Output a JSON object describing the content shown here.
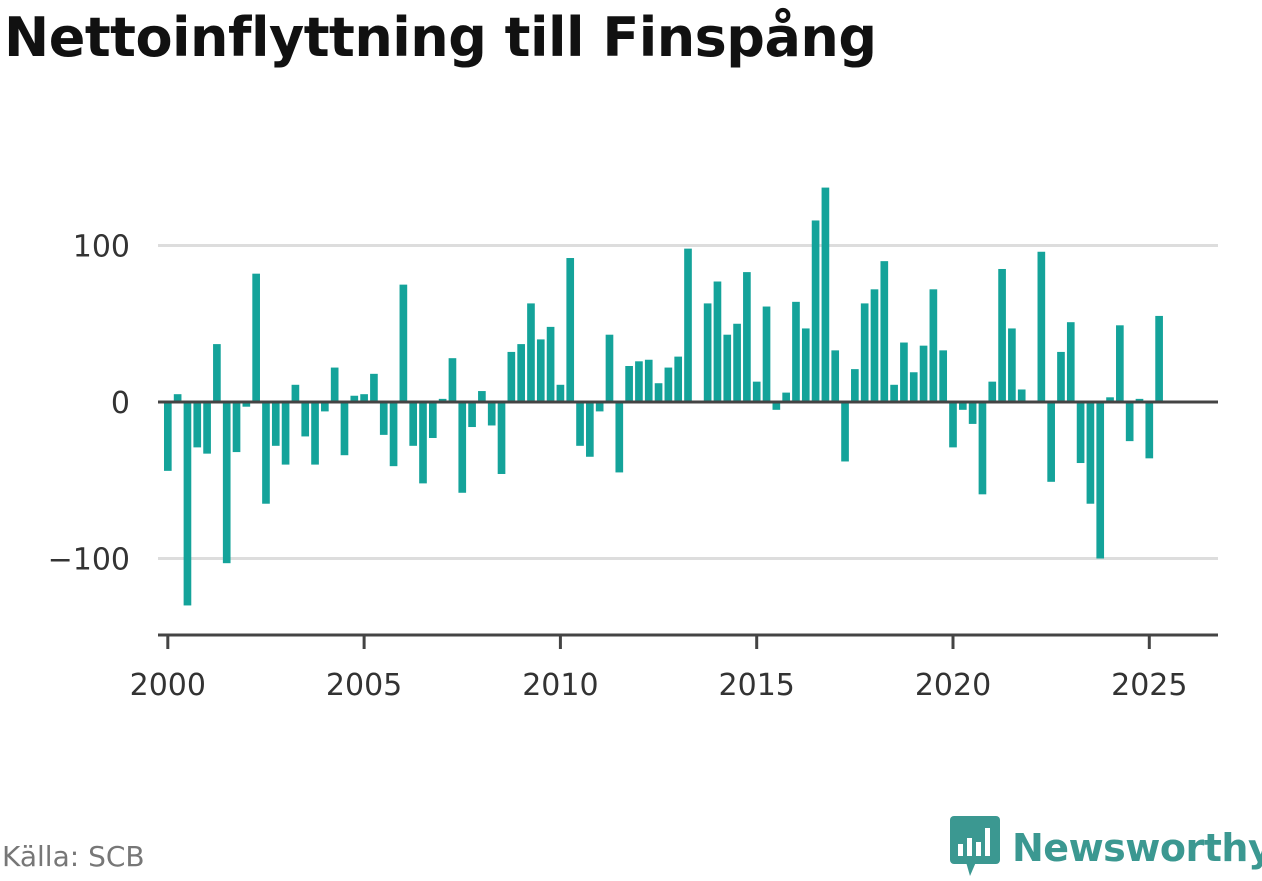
{
  "title": "Nettoinflyttning till Finspång",
  "source": "Källa: SCB",
  "brand": {
    "name": "Newsworthy",
    "icon": "newsworthy-logo-icon"
  },
  "colors": {
    "bar": "#14a39a",
    "zero_line": "#444444",
    "grid": "#dddddd",
    "axis": "#444444",
    "brand": "#3b9891"
  },
  "chart_data": {
    "type": "bar",
    "frequency": "quarterly",
    "title": "Nettoinflyttning till Finspång",
    "xlabel": "",
    "ylabel": "",
    "grid": true,
    "xlim": [
      1999.75,
      2026.75
    ],
    "ylim": [
      -150,
      150
    ],
    "x_ticks": [
      2000,
      2005,
      2010,
      2015,
      2020,
      2025
    ],
    "x_tick_labels": [
      "2000",
      "2005",
      "2010",
      "2015",
      "2020",
      "2025"
    ],
    "y_ticks": [
      -100,
      0,
      100
    ],
    "y_tick_labels": [
      "−100",
      "0",
      "100"
    ],
    "x": [
      "2000-Q1",
      "2000-Q2",
      "2000-Q3",
      "2000-Q4",
      "2001-Q1",
      "2001-Q2",
      "2001-Q3",
      "2001-Q4",
      "2002-Q1",
      "2002-Q2",
      "2002-Q3",
      "2002-Q4",
      "2003-Q1",
      "2003-Q2",
      "2003-Q3",
      "2003-Q4",
      "2004-Q1",
      "2004-Q2",
      "2004-Q3",
      "2004-Q4",
      "2005-Q1",
      "2005-Q2",
      "2005-Q3",
      "2005-Q4",
      "2006-Q1",
      "2006-Q2",
      "2006-Q3",
      "2006-Q4",
      "2007-Q1",
      "2007-Q2",
      "2007-Q3",
      "2007-Q4",
      "2008-Q1",
      "2008-Q2",
      "2008-Q3",
      "2008-Q4",
      "2009-Q1",
      "2009-Q2",
      "2009-Q3",
      "2009-Q4",
      "2010-Q1",
      "2010-Q2",
      "2010-Q3",
      "2010-Q4",
      "2011-Q1",
      "2011-Q2",
      "2011-Q3",
      "2011-Q4",
      "2012-Q1",
      "2012-Q2",
      "2012-Q3",
      "2012-Q4",
      "2013-Q1",
      "2013-Q2",
      "2013-Q3",
      "2013-Q4",
      "2014-Q1",
      "2014-Q2",
      "2014-Q3",
      "2014-Q4",
      "2015-Q1",
      "2015-Q2",
      "2015-Q3",
      "2015-Q4",
      "2016-Q1",
      "2016-Q2",
      "2016-Q3",
      "2016-Q4",
      "2017-Q1",
      "2017-Q2",
      "2017-Q3",
      "2017-Q4",
      "2018-Q1",
      "2018-Q2",
      "2018-Q3",
      "2018-Q4",
      "2019-Q1",
      "2019-Q2",
      "2019-Q3",
      "2019-Q4",
      "2020-Q1",
      "2020-Q2",
      "2020-Q3",
      "2020-Q4",
      "2021-Q1",
      "2021-Q2",
      "2021-Q3",
      "2021-Q4",
      "2022-Q1",
      "2022-Q2",
      "2022-Q3",
      "2022-Q4",
      "2023-Q1",
      "2023-Q2",
      "2023-Q3",
      "2023-Q4",
      "2024-Q1",
      "2024-Q2",
      "2024-Q3",
      "2024-Q4",
      "2025-Q1",
      "2025-Q2"
    ],
    "values": [
      -44,
      5,
      -130,
      -29,
      -33,
      37,
      -103,
      -32,
      -3,
      82,
      -65,
      -28,
      -40,
      11,
      -22,
      -40,
      -6,
      22,
      -34,
      4,
      5,
      18,
      -21,
      -41,
      75,
      -28,
      -52,
      -23,
      2,
      28,
      -58,
      -16,
      7,
      -15,
      -46,
      32,
      37,
      63,
      40,
      48,
      11,
      92,
      -28,
      -35,
      -6,
      43,
      -45,
      23,
      26,
      27,
      12,
      22,
      29,
      98,
      0,
      63,
      77,
      43,
      50,
      83,
      13,
      61,
      -5,
      6,
      64,
      47,
      116,
      137,
      33,
      -38,
      21,
      63,
      72,
      90,
      11,
      38,
      19,
      36,
      72,
      33,
      -29,
      -5,
      -14,
      -59,
      13,
      85,
      47,
      8,
      0,
      96,
      -51,
      32,
      51,
      -39,
      -65,
      -100,
      3,
      49,
      -25,
      2,
      -36,
      55
    ]
  }
}
